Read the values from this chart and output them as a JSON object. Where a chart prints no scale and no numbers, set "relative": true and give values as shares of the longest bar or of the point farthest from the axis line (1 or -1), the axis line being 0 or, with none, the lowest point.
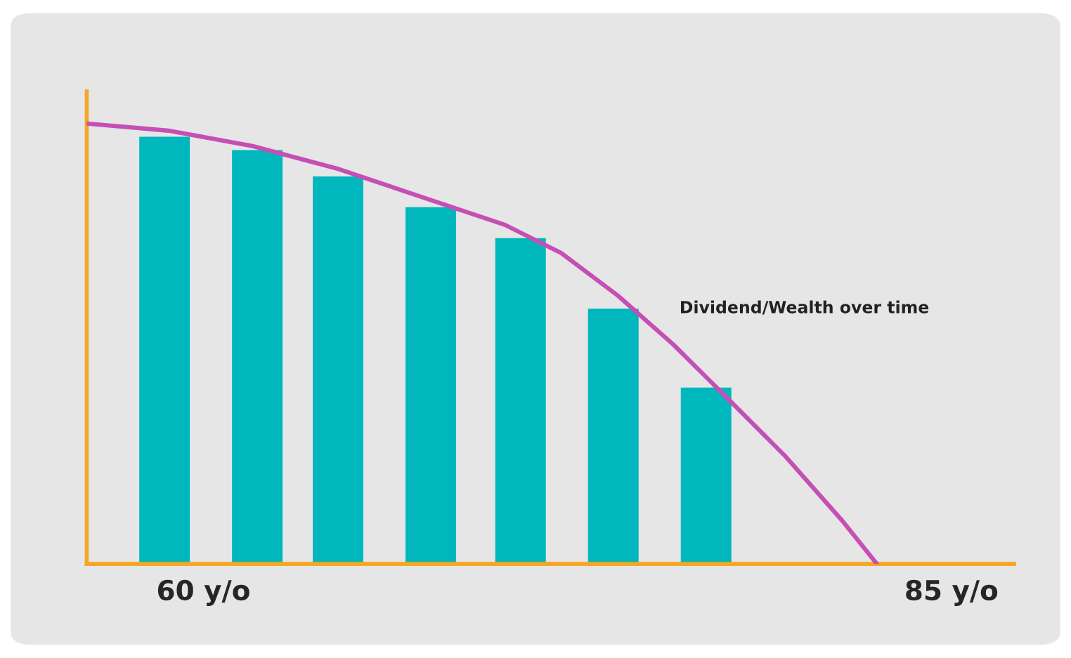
{
  "chart_data": {
    "type": "bar",
    "relative": true,
    "xlim": [
      56.1,
      87.1
    ],
    "xticks": [
      {
        "value": 60,
        "label": "60 y/o"
      },
      {
        "value": 85,
        "label": "85 y/o"
      }
    ],
    "grid": false,
    "series": [
      {
        "color": "#00b7bd",
        "x": [
          58.7,
          61.8,
          64.5,
          67.6,
          70.6,
          73.7,
          76.8
        ],
        "values": [
          0.97,
          0.94,
          0.88,
          0.81,
          0.74,
          0.58,
          0.4
        ]
      },
      {
        "type": "line",
        "name": "Dividend/Wealth over time",
        "color": "#c54fb4",
        "x": [
          56.1,
          58.83,
          61.64,
          64.46,
          67.27,
          70.08,
          71.96,
          73.84,
          75.71,
          77.59,
          79.47,
          81.34,
          82.51
        ],
        "values": [
          1,
          0.984,
          0.949,
          0.898,
          0.834,
          0.77,
          0.706,
          0.61,
          0.498,
          0.371,
          0.243,
          0.099,
          0
        ]
      }
    ]
  }
}
